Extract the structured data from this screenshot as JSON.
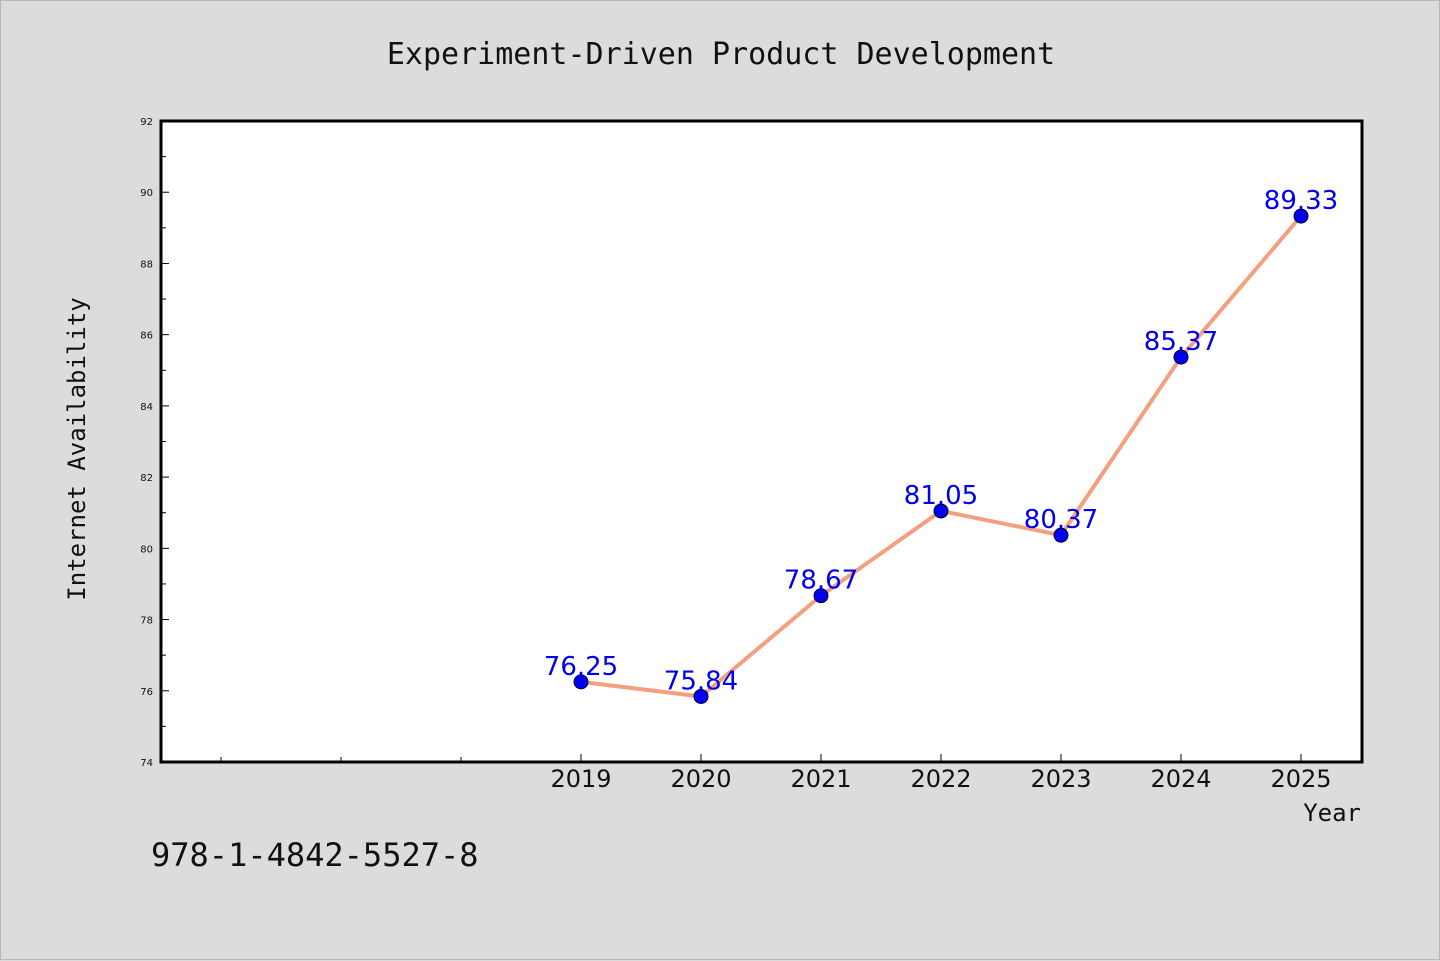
{
  "chart_data": {
    "type": "line",
    "title": "Experiment-Driven Product Development",
    "xlabel": "Year",
    "ylabel": "Internet Availability",
    "categories": [
      "2019",
      "2020",
      "2021",
      "2022",
      "2023",
      "2024",
      "2025"
    ],
    "values": [
      76.25,
      75.84,
      78.67,
      81.05,
      80.37,
      85.37,
      89.33
    ],
    "data_labels": [
      "76.25",
      "75.84",
      "78.67",
      "81.05",
      "80.37",
      "85.37",
      "89.33"
    ],
    "ylim": [
      74,
      92
    ],
    "yticks": [
      74,
      76,
      78,
      80,
      82,
      84,
      86,
      88,
      90,
      92
    ],
    "grid": false,
    "line_color": "#f4a080",
    "marker_color": "#0000ee",
    "label_color": "#0000ee"
  },
  "annotation": "978-1-4842-5527-8"
}
